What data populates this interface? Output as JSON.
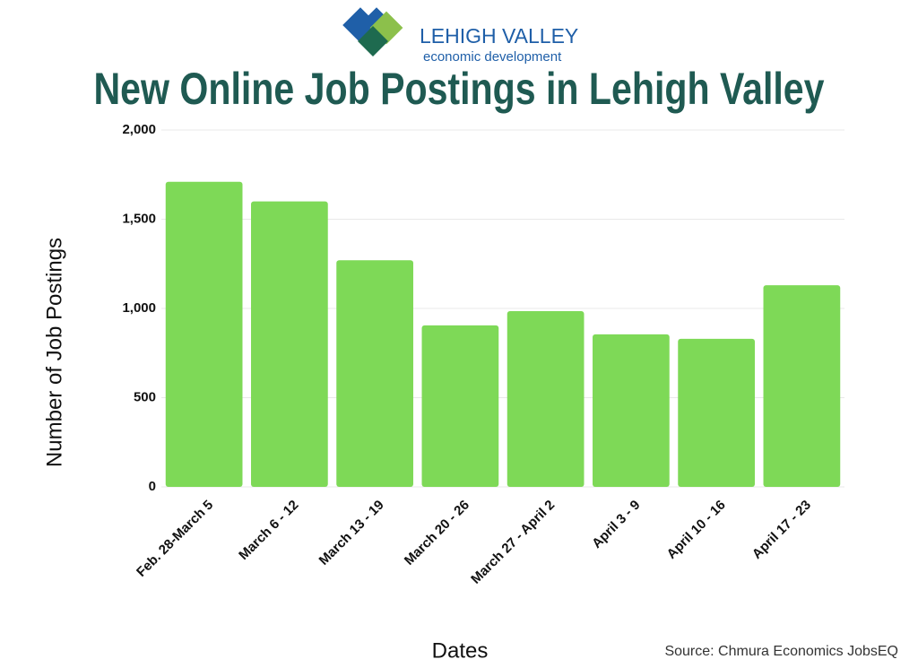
{
  "logo": {
    "name": "LEHIGH VALLEY",
    "tagline": "economic development"
  },
  "chart_data": {
    "type": "bar",
    "title": "New Online Job Postings in Lehigh Valley",
    "x_label": "Dates",
    "y_label": "Number of Job Postings",
    "source": "Source: Chmura Economics JobsEQ",
    "categories": [
      "Feb. 28-March 5",
      "March 6 - 12",
      "March 13 - 19",
      "March 20 - 26",
      "March 27 - April 2",
      "April 3 - 9",
      "April 10 - 16",
      "April 17 - 23"
    ],
    "values": [
      1710,
      1600,
      1270,
      905,
      985,
      855,
      830,
      1130
    ],
    "color": "#7ed957",
    "ylim": [
      0,
      2000
    ],
    "yticks": [
      0,
      500,
      {
        "value": 1000,
        "label": "1,000"
      },
      {
        "value": 1500,
        "label": "1,500"
      },
      {
        "value": 2000,
        "label": "2,000"
      }
    ],
    "grid": true
  }
}
